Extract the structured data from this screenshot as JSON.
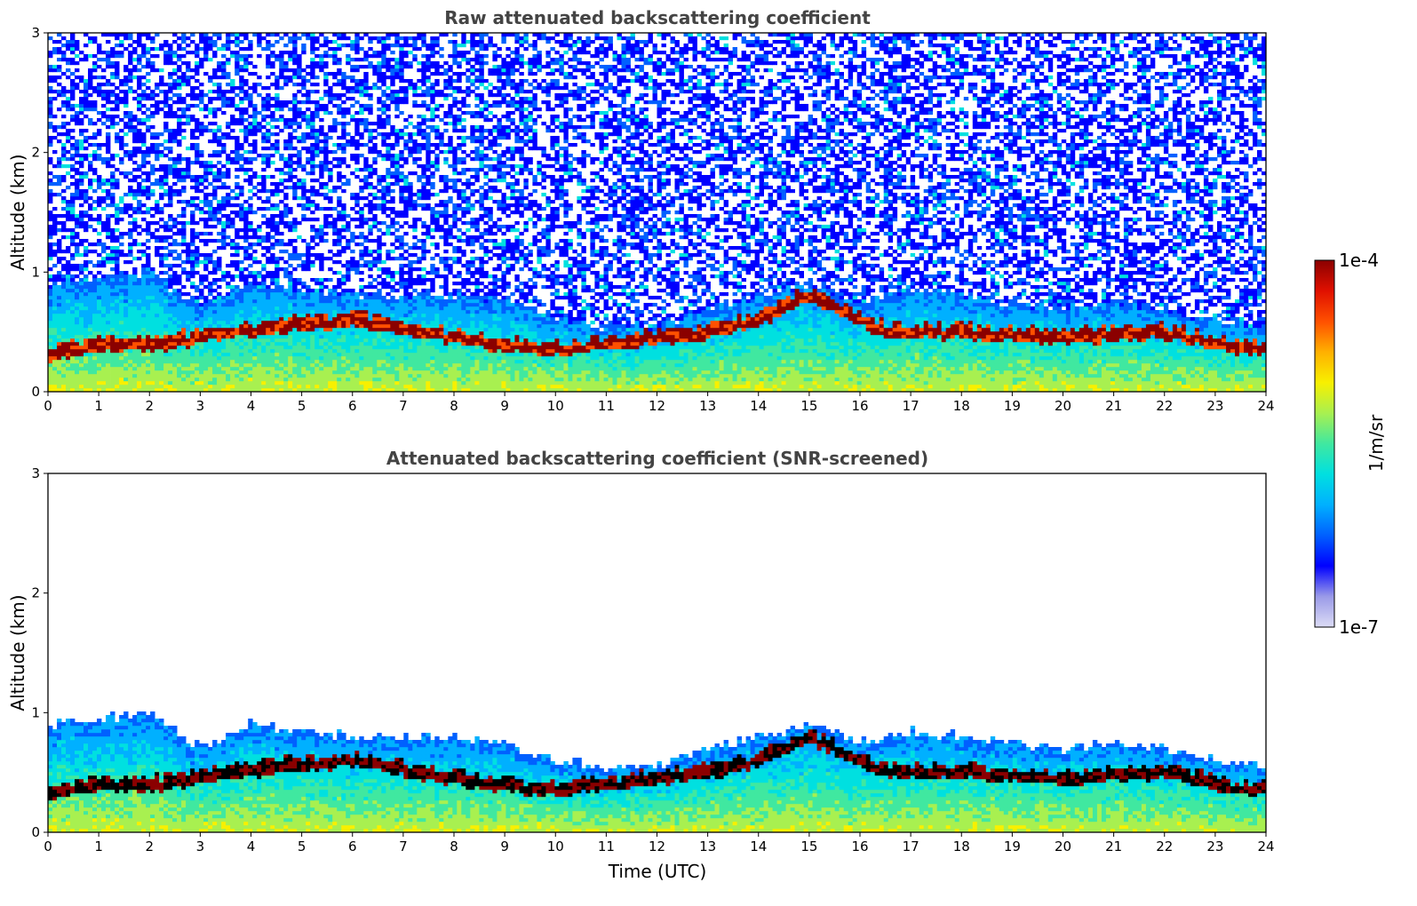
{
  "colors": {
    "colormap": [
      "#dcdcf5",
      "#9a9ae8",
      "#0000ff",
      "#0060ff",
      "#00b0ff",
      "#00e0e0",
      "#40e8a0",
      "#a8f050",
      "#f8f000",
      "#ffb000",
      "#ff5000",
      "#e01000",
      "#8b0000"
    ],
    "cloud_core_screened": "#000000",
    "title_text": "#444444"
  },
  "chart_data": [
    {
      "type": "heatmap",
      "title": "Raw attenuated backscattering coefficient",
      "xlabel": "",
      "ylabel": "Altitude (km)",
      "xlim": [
        0,
        24
      ],
      "ylim": [
        0,
        3
      ],
      "x_ticks": [
        "0",
        "1",
        "2",
        "3",
        "4",
        "5",
        "6",
        "7",
        "8",
        "9",
        "10",
        "11",
        "12",
        "13",
        "14",
        "15",
        "16",
        "17",
        "18",
        "19",
        "20",
        "21",
        "22",
        "23",
        "24"
      ],
      "y_ticks": [
        "0",
        "1",
        "2",
        "3"
      ],
      "screened": false,
      "description_of_layers": {
        "boundary_layer_top_km": [
          [
            0,
            0.9
          ],
          [
            1,
            0.95
          ],
          [
            2,
            1.0
          ],
          [
            3,
            0.7
          ],
          [
            4,
            0.9
          ],
          [
            5,
            0.85
          ],
          [
            6,
            0.8
          ],
          [
            7,
            0.8
          ],
          [
            8,
            0.8
          ],
          [
            9,
            0.75
          ],
          [
            10,
            0.6
          ],
          [
            11,
            0.55
          ],
          [
            12,
            0.55
          ],
          [
            13,
            0.7
          ],
          [
            14,
            0.8
          ],
          [
            15,
            0.9
          ],
          [
            16,
            0.75
          ],
          [
            17,
            0.85
          ],
          [
            18,
            0.8
          ],
          [
            19,
            0.75
          ],
          [
            20,
            0.7
          ],
          [
            21,
            0.75
          ],
          [
            22,
            0.7
          ],
          [
            23,
            0.6
          ],
          [
            24,
            0.55
          ]
        ],
        "cloud_base_km": [
          [
            0,
            0.25
          ],
          [
            1,
            0.35
          ],
          [
            2.3,
            0.35
          ],
          [
            3,
            0.4
          ],
          [
            3.6,
            0.45
          ],
          [
            6,
            0.55
          ],
          [
            8.7,
            0.35
          ],
          [
            10,
            0.3
          ],
          [
            11,
            0.35
          ],
          [
            12,
            0.4
          ],
          [
            13,
            0.45
          ],
          [
            14,
            0.55
          ],
          [
            15,
            0.75
          ],
          [
            16.5,
            0.45
          ],
          [
            18,
            0.45
          ],
          [
            20,
            0.4
          ],
          [
            22,
            0.45
          ],
          [
            23,
            0.35
          ],
          [
            24,
            0.3
          ]
        ]
      }
    },
    {
      "type": "heatmap",
      "title": "Attenuated backscattering coefficient (SNR-screened)",
      "xlabel": "Time (UTC)",
      "ylabel": "Altitude (km)",
      "xlim": [
        0,
        24
      ],
      "ylim": [
        0,
        3
      ],
      "x_ticks": [
        "0",
        "1",
        "2",
        "3",
        "4",
        "5",
        "6",
        "7",
        "8",
        "9",
        "10",
        "11",
        "12",
        "13",
        "14",
        "15",
        "16",
        "17",
        "18",
        "19",
        "20",
        "21",
        "22",
        "23",
        "24"
      ],
      "y_ticks": [
        "0",
        "1",
        "2",
        "3"
      ],
      "screened": true
    }
  ],
  "colorbar": {
    "max_label": "1e-4",
    "min_label": "1e-7",
    "unit_label": "1/m/sr",
    "range": [
      1e-07,
      0.0001
    ],
    "scale": "log"
  }
}
